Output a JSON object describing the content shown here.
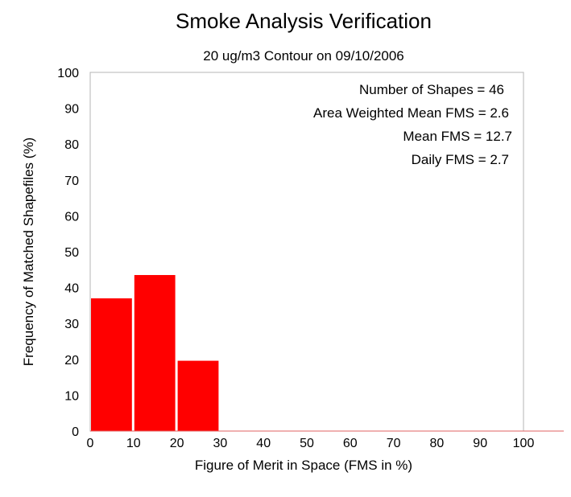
{
  "chart_data": {
    "type": "bar",
    "title": "Smoke Analysis Verification",
    "subtitle": "20 ug/m3 Contour on 09/10/2006",
    "xlabel": "Figure of Merit in Space (FMS in %)",
    "ylabel": "Frequency of Matched Shapefiles (%)",
    "xlim": [
      0,
      100
    ],
    "ylim": [
      0,
      100
    ],
    "xticks": [
      "0",
      "10",
      "20",
      "30",
      "40",
      "50",
      "60",
      "70",
      "80",
      "90",
      "100"
    ],
    "yticks": [
      "0",
      "10",
      "20",
      "30",
      "40",
      "50",
      "60",
      "70",
      "80",
      "90",
      "100"
    ],
    "bins": [
      {
        "from": 0,
        "to": 10,
        "value": 37
      },
      {
        "from": 10,
        "to": 20,
        "value": 43.5
      },
      {
        "from": 20,
        "to": 30,
        "value": 19.6
      },
      {
        "from": 30,
        "to": 40,
        "value": 0
      },
      {
        "from": 40,
        "to": 50,
        "value": 0
      },
      {
        "from": 50,
        "to": 60,
        "value": 0
      },
      {
        "from": 60,
        "to": 70,
        "value": 0
      },
      {
        "from": 70,
        "to": 80,
        "value": 0
      },
      {
        "from": 80,
        "to": 90,
        "value": 0
      },
      {
        "from": 90,
        "to": 100,
        "value": 0
      }
    ],
    "bar_color": "#ff0000",
    "grid": false,
    "annotations": [
      "Number of Shapes = 46",
      "Area Weighted Mean FMS = 2.6",
      "Mean FMS = 12.7",
      "Daily FMS = 2.7"
    ]
  }
}
